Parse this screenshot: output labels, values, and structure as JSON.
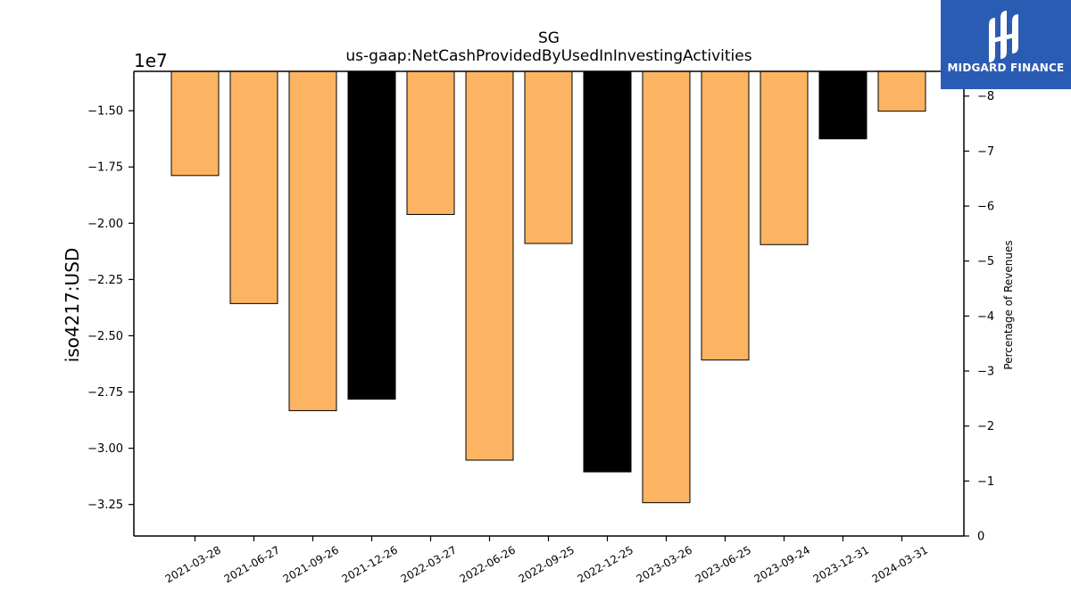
{
  "chart_data": {
    "type": "bar",
    "title": "SG",
    "subtitle": "us-gaap:NetCashProvidedByUsedInInvestingActivities",
    "ylabel": "iso4217:USD",
    "y_offset_label": "1e7",
    "y2label": "Percentage of Revenues",
    "categories": [
      "2021-03-28",
      "2021-06-27",
      "2021-09-26",
      "2021-12-26",
      "2022-03-27",
      "2022-06-26",
      "2022-09-25",
      "2022-12-25",
      "2023-03-26",
      "2023-06-25",
      "2023-09-24",
      "2023-12-31",
      "2024-03-31"
    ],
    "values": [
      -17880000,
      -23570000,
      -28330000,
      -27820000,
      -19610000,
      -30530000,
      -20900000,
      -31050000,
      -32420000,
      -26080000,
      -20950000,
      -16250000,
      -15020000
    ],
    "bar_colors": [
      "#fdb462",
      "#fdb462",
      "#fdb462",
      "#000000",
      "#fdb462",
      "#fdb462",
      "#fdb462",
      "#000000",
      "#fdb462",
      "#fdb462",
      "#fdb462",
      "#000000",
      "#fdb462"
    ],
    "ylim": [
      -33900000,
      -13250000
    ],
    "yticks": [
      -15000000,
      -17500000,
      -20000000,
      -22500000,
      -25000000,
      -27500000,
      -30000000,
      -32500000
    ],
    "ytick_labels": [
      "−1.50",
      "−1.75",
      "−2.00",
      "−2.25",
      "−2.50",
      "−2.75",
      "−3.00",
      "−3.25"
    ],
    "y2lim": [
      0,
      8.45
    ],
    "y2ticks": [
      0,
      1,
      2,
      3,
      4,
      5,
      6,
      7,
      8
    ],
    "y2tick_labels": [
      "0",
      "−1",
      "−2",
      "−3",
      "−4",
      "−5",
      "−6",
      "−7",
      "−8"
    ],
    "grid": false,
    "legend": "none"
  },
  "logo": {
    "text": "MIDGARD FINANCE",
    "color": "#2b5cb4"
  }
}
